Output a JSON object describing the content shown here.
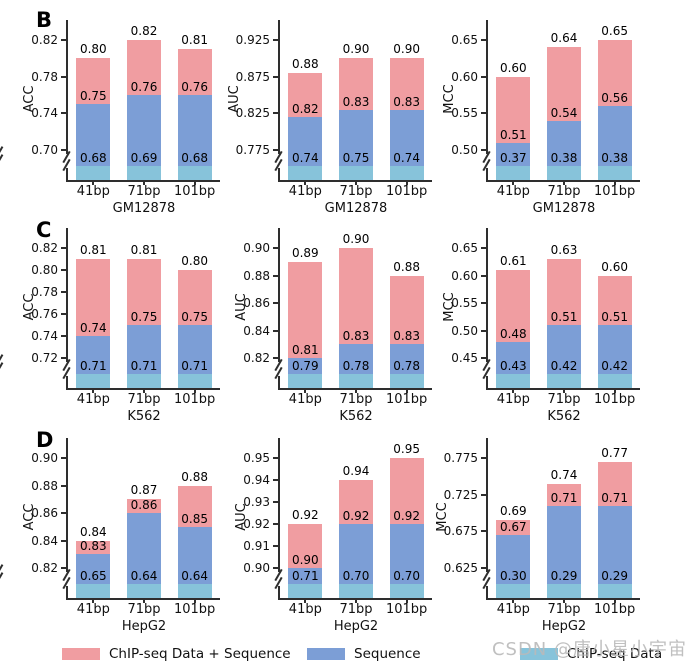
{
  "figure": {
    "panels": [
      {
        "label": "B"
      },
      {
        "label": "C"
      },
      {
        "label": "D"
      }
    ]
  },
  "colors": {
    "pink": "#F09DA1",
    "blue": "#7C9ED6",
    "teal": "#87C3DA",
    "axis": "#2e2e2e"
  },
  "legend": {
    "items": [
      {
        "label": "ChIP-seq Data + Sequence",
        "color_key": "pink"
      },
      {
        "label": "Sequence",
        "color_key": "blue"
      },
      {
        "label": "ChIP-seq Data",
        "color_key": "teal"
      }
    ]
  },
  "watermark": {
    "text": "CSDN @唐小星小宇宙"
  },
  "chart_data": [
    {
      "panel": "B",
      "type": "bar",
      "ylabel": "ACC",
      "xlabel": "GM12878",
      "categories": [
        "41bp",
        "71bp",
        "101bp"
      ],
      "yticks": [
        "0.82",
        "0.78",
        "0.74",
        "0.70"
      ],
      "series": [
        {
          "name": "ChIP-seq Data + Sequence",
          "color_key": "pink",
          "values": [
            0.8,
            0.82,
            0.81
          ]
        },
        {
          "name": "Sequence",
          "color_key": "blue",
          "values": [
            0.75,
            0.76,
            0.76
          ]
        },
        {
          "name": "ChIP-seq Data",
          "color_key": "teal",
          "values": [
            0.68,
            0.69,
            0.68
          ]
        }
      ]
    },
    {
      "panel": "B",
      "type": "bar",
      "ylabel": "AUC",
      "xlabel": "GM12878",
      "categories": [
        "41bp",
        "71bp",
        "101bp"
      ],
      "yticks": [
        "0.925",
        "0.875",
        "0.825",
        "0.775"
      ],
      "series": [
        {
          "name": "ChIP-seq Data + Sequence",
          "color_key": "pink",
          "values": [
            0.88,
            0.9,
            0.9
          ]
        },
        {
          "name": "Sequence",
          "color_key": "blue",
          "values": [
            0.82,
            0.83,
            0.83
          ]
        },
        {
          "name": "ChIP-seq Data",
          "color_key": "teal",
          "values": [
            0.74,
            0.75,
            0.74
          ]
        }
      ]
    },
    {
      "panel": "B",
      "type": "bar",
      "ylabel": "MCC",
      "xlabel": "GM12878",
      "categories": [
        "41bp",
        "71bp",
        "101bp"
      ],
      "yticks": [
        "0.65",
        "0.60",
        "0.55",
        "0.50"
      ],
      "series": [
        {
          "name": "ChIP-seq Data + Sequence",
          "color_key": "pink",
          "values": [
            0.6,
            0.64,
            0.65
          ]
        },
        {
          "name": "Sequence",
          "color_key": "blue",
          "values": [
            0.51,
            0.54,
            0.56
          ]
        },
        {
          "name": "ChIP-seq Data",
          "color_key": "teal",
          "values": [
            0.37,
            0.38,
            0.38
          ]
        }
      ]
    },
    {
      "panel": "C",
      "type": "bar",
      "ylabel": "ACC",
      "xlabel": "K562",
      "categories": [
        "41bp",
        "71bp",
        "101bp"
      ],
      "yticks": [
        "0.82",
        "0.80",
        "0.78",
        "0.76",
        "0.74",
        "0.72"
      ],
      "series": [
        {
          "name": "ChIP-seq Data + Sequence",
          "color_key": "pink",
          "values": [
            0.81,
            0.81,
            0.8
          ]
        },
        {
          "name": "Sequence",
          "color_key": "blue",
          "values": [
            0.74,
            0.75,
            0.75
          ]
        },
        {
          "name": "ChIP-seq Data",
          "color_key": "teal",
          "values": [
            0.71,
            0.71,
            0.71
          ]
        }
      ]
    },
    {
      "panel": "C",
      "type": "bar",
      "ylabel": "AUC",
      "xlabel": "K562",
      "categories": [
        "41bp",
        "71bp",
        "101bp"
      ],
      "yticks": [
        "0.90",
        "0.88",
        "0.86",
        "0.84",
        "0.82"
      ],
      "series": [
        {
          "name": "ChIP-seq Data + Sequence",
          "color_key": "pink",
          "values": [
            0.89,
            0.9,
            0.88
          ]
        },
        {
          "name": "Sequence",
          "color_key": "blue",
          "values": [
            0.81,
            0.83,
            0.83
          ]
        },
        {
          "name": "ChIP-seq Data",
          "color_key": "teal",
          "values": [
            0.79,
            0.78,
            0.78
          ]
        }
      ]
    },
    {
      "panel": "C",
      "type": "bar",
      "ylabel": "MCC",
      "xlabel": "K562",
      "categories": [
        "41bp",
        "71bp",
        "101bp"
      ],
      "yticks": [
        "0.65",
        "0.60",
        "0.55",
        "0.50",
        "0.45"
      ],
      "series": [
        {
          "name": "ChIP-seq Data + Sequence",
          "color_key": "pink",
          "values": [
            0.61,
            0.63,
            0.6
          ]
        },
        {
          "name": "Sequence",
          "color_key": "blue",
          "values": [
            0.48,
            0.51,
            0.51
          ]
        },
        {
          "name": "ChIP-seq Data",
          "color_key": "teal",
          "values": [
            0.43,
            0.42,
            0.42
          ]
        }
      ]
    },
    {
      "panel": "D",
      "type": "bar",
      "ylabel": "ACC",
      "xlabel": "HepG2",
      "categories": [
        "41bp",
        "71bp",
        "101bp"
      ],
      "yticks": [
        "0.90",
        "0.88",
        "0.86",
        "0.84",
        "0.82"
      ],
      "series": [
        {
          "name": "ChIP-seq Data + Sequence",
          "color_key": "pink",
          "values": [
            0.84,
            0.87,
            0.88
          ]
        },
        {
          "name": "Sequence",
          "color_key": "blue",
          "values": [
            0.83,
            0.86,
            0.85
          ]
        },
        {
          "name": "ChIP-seq Data",
          "color_key": "teal",
          "values": [
            0.65,
            0.64,
            0.64
          ]
        }
      ]
    },
    {
      "panel": "D",
      "type": "bar",
      "ylabel": "AUC",
      "xlabel": "HepG2",
      "categories": [
        "41bp",
        "71bp",
        "101bp"
      ],
      "yticks": [
        "0.95",
        "0.94",
        "0.93",
        "0.92",
        "0.91",
        "0.90"
      ],
      "series": [
        {
          "name": "ChIP-seq Data + Sequence",
          "color_key": "pink",
          "values": [
            0.92,
            0.94,
            0.95
          ]
        },
        {
          "name": "Sequence",
          "color_key": "blue",
          "values": [
            0.9,
            0.92,
            0.92
          ]
        },
        {
          "name": "ChIP-seq Data",
          "color_key": "teal",
          "values": [
            0.71,
            0.7,
            0.7
          ]
        }
      ]
    },
    {
      "panel": "D",
      "type": "bar",
      "ylabel": "MCC",
      "xlabel": "HepG2",
      "categories": [
        "41bp",
        "71bp",
        "101bp"
      ],
      "yticks": [
        "0.775",
        "0.725",
        "0.675",
        "0.625"
      ],
      "series": [
        {
          "name": "ChIP-seq Data + Sequence",
          "color_key": "pink",
          "values": [
            0.69,
            0.74,
            0.77
          ]
        },
        {
          "name": "Sequence",
          "color_key": "blue",
          "values": [
            0.67,
            0.71,
            0.71
          ]
        },
        {
          "name": "ChIP-seq Data",
          "color_key": "teal",
          "values": [
            0.3,
            0.29,
            0.29
          ]
        }
      ]
    }
  ]
}
